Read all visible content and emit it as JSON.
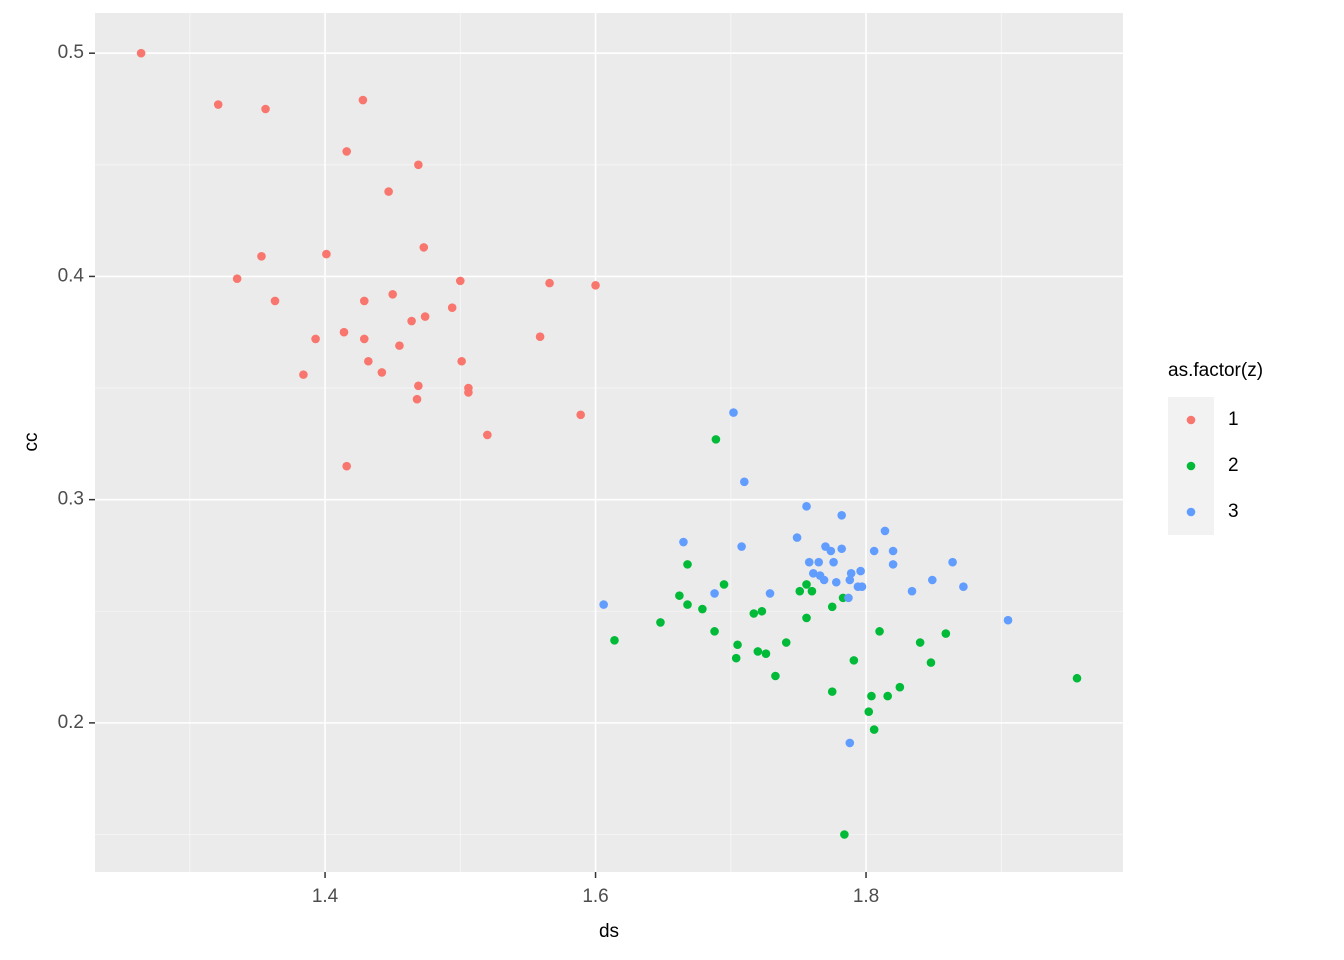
{
  "chart_data": {
    "type": "scatter",
    "x_label": "ds",
    "y_label": "cc",
    "legend_title": "as.factor(z)",
    "legend_position": "right",
    "grid": true,
    "xlim": [
      1.2299,
      1.99
    ],
    "ylim": [
      0.1332,
      0.518
    ],
    "xticks": [
      1.4,
      1.6,
      1.8
    ],
    "yticks": [
      0.2,
      0.3,
      0.4,
      0.5
    ],
    "x_minor_ticks": [
      1.3,
      1.5,
      1.7,
      1.9
    ],
    "y_minor_ticks": [
      0.15,
      0.25,
      0.35,
      0.45
    ],
    "series": [
      {
        "name": "1",
        "color": "#F8766D",
        "x": [
          1.264,
          1.321,
          1.356,
          1.428,
          1.416,
          1.469,
          1.447,
          1.473,
          1.401,
          1.353,
          1.335,
          1.363,
          1.429,
          1.45,
          1.5,
          1.566,
          1.6,
          1.494,
          1.474,
          1.464,
          1.414,
          1.429,
          1.393,
          1.559,
          1.455,
          1.432,
          1.501,
          1.384,
          1.442,
          1.469,
          1.506,
          1.506,
          1.468,
          1.589,
          1.52,
          1.416
        ],
        "values": [
          0.5,
          0.477,
          0.475,
          0.479,
          0.456,
          0.45,
          0.438,
          0.413,
          0.41,
          0.409,
          0.399,
          0.389,
          0.389,
          0.392,
          0.398,
          0.397,
          0.396,
          0.386,
          0.382,
          0.38,
          0.375,
          0.372,
          0.372,
          0.373,
          0.369,
          0.362,
          0.362,
          0.356,
          0.357,
          0.351,
          0.35,
          0.348,
          0.345,
          0.338,
          0.329,
          0.315
        ]
      },
      {
        "name": "2",
        "color": "#00BA38",
        "x": [
          1.689,
          1.668,
          1.695,
          1.662,
          1.668,
          1.679,
          1.614,
          1.648,
          1.688,
          1.705,
          1.704,
          1.717,
          1.723,
          1.72,
          1.726,
          1.733,
          1.741,
          1.751,
          1.756,
          1.76,
          1.756,
          1.775,
          1.783,
          1.775,
          1.791,
          1.81,
          1.804,
          1.816,
          1.825,
          1.802,
          1.806,
          1.84,
          1.859,
          1.848,
          1.956,
          1.784
        ],
        "values": [
          0.327,
          0.271,
          0.262,
          0.257,
          0.253,
          0.251,
          0.237,
          0.245,
          0.241,
          0.235,
          0.229,
          0.249,
          0.25,
          0.232,
          0.231,
          0.221,
          0.236,
          0.259,
          0.262,
          0.259,
          0.247,
          0.252,
          0.256,
          0.214,
          0.228,
          0.241,
          0.212,
          0.212,
          0.216,
          0.205,
          0.197,
          0.236,
          0.24,
          0.227,
          0.22,
          0.15
        ]
      },
      {
        "name": "3",
        "color": "#619CFF",
        "x": [
          1.702,
          1.71,
          1.756,
          1.782,
          1.749,
          1.814,
          1.665,
          1.708,
          1.77,
          1.774,
          1.782,
          1.806,
          1.82,
          1.758,
          1.765,
          1.776,
          1.82,
          1.864,
          1.761,
          1.766,
          1.796,
          1.789,
          1.769,
          1.778,
          1.788,
          1.849,
          1.794,
          1.797,
          1.872,
          1.729,
          1.834,
          1.688,
          1.787,
          1.606,
          1.905,
          1.788
        ],
        "values": [
          0.339,
          0.308,
          0.297,
          0.293,
          0.283,
          0.286,
          0.281,
          0.279,
          0.279,
          0.277,
          0.278,
          0.277,
          0.277,
          0.272,
          0.272,
          0.272,
          0.271,
          0.272,
          0.267,
          0.266,
          0.268,
          0.267,
          0.264,
          0.263,
          0.264,
          0.264,
          0.261,
          0.261,
          0.261,
          0.258,
          0.259,
          0.258,
          0.256,
          0.253,
          0.246,
          0.191
        ]
      }
    ]
  }
}
